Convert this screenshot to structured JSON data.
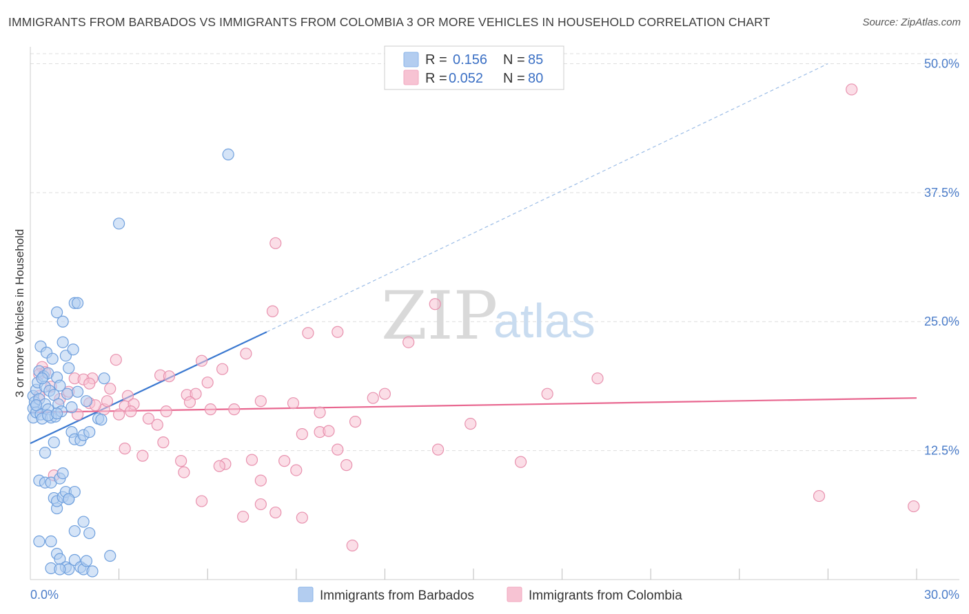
{
  "title": "IMMIGRANTS FROM BARBADOS VS IMMIGRANTS FROM COLOMBIA 3 OR MORE VEHICLES IN HOUSEHOLD CORRELATION CHART",
  "source": "Source: ZipAtlas.com",
  "watermark": {
    "zip": "ZIP",
    "atlas": "atlas"
  },
  "legend": {
    "r_label": "R = ",
    "n_label": "N = ",
    "entries": [
      {
        "series": "Immigrants from Barbados",
        "r": "0.156",
        "n": "85",
        "color": "#8ab4e8"
      },
      {
        "series": "Immigrants from Colombia",
        "r": "0.052",
        "n": "80",
        "color": "#f2a7bf"
      }
    ]
  },
  "colors": {
    "barbados_fill": "#b3cdf0",
    "barbados_stroke": "#6e9fdd",
    "barbados_line": "#3a78d0",
    "colombia_fill": "#f7c3d3",
    "colombia_stroke": "#e891ae",
    "colombia_line": "#e8668f",
    "grid": "#dddddd",
    "tick_text": "#4a7cc9"
  },
  "chart_data": {
    "type": "scatter",
    "title": "IMMIGRANTS FROM BARBADOS VS IMMIGRANTS FROM COLOMBIA 3 OR MORE VEHICLES IN HOUSEHOLD CORRELATION CHART",
    "xlabel": "",
    "ylabel": "3 or more Vehicles in Household",
    "xlim": [
      0,
      30
    ],
    "ylim": [
      0,
      51.5
    ],
    "x_tick_labels": [
      {
        "value": 0,
        "label": "0.0%"
      },
      {
        "value": 30,
        "label": "30.0%"
      }
    ],
    "x_minor_ticks": [
      3,
      6,
      9,
      12,
      15,
      18,
      21,
      24,
      27
    ],
    "y_ticks": [
      {
        "value": 12.5,
        "label": "12.5%"
      },
      {
        "value": 25,
        "label": "25.0%"
      },
      {
        "value": 37.5,
        "label": "37.5%"
      },
      {
        "value": 50,
        "label": "50.0%"
      }
    ],
    "grid": true,
    "legend_position": "top-center",
    "series": [
      {
        "name": "Immigrants from Barbados",
        "r": 0.156,
        "n": 85,
        "trend": {
          "x0": 0,
          "y0": 13.2,
          "x1": 8,
          "y1": 24.0,
          "dashed_to_x": 27,
          "dashed_to_y": 50.0
        },
        "points": [
          [
            0.1,
            17.8
          ],
          [
            0.1,
            16.6
          ],
          [
            0.1,
            15.7
          ],
          [
            0.15,
            17.2
          ],
          [
            0.2,
            18.4
          ],
          [
            0.2,
            16.2
          ],
          [
            0.25,
            19.1
          ],
          [
            0.3,
            20.2
          ],
          [
            0.3,
            17.5
          ],
          [
            0.35,
            22.6
          ],
          [
            0.35,
            16.0
          ],
          [
            0.4,
            15.6
          ],
          [
            0.45,
            19.7
          ],
          [
            0.5,
            18.7
          ],
          [
            0.5,
            17.0
          ],
          [
            0.55,
            22.0
          ],
          [
            0.6,
            16.5
          ],
          [
            0.6,
            20.0
          ],
          [
            0.65,
            18.3
          ],
          [
            0.7,
            15.7
          ],
          [
            0.75,
            21.4
          ],
          [
            0.8,
            17.9
          ],
          [
            0.85,
            15.8
          ],
          [
            0.9,
            19.6
          ],
          [
            0.95,
            17.0
          ],
          [
            1.0,
            18.8
          ],
          [
            1.05,
            16.3
          ],
          [
            0.9,
            25.9
          ],
          [
            1.1,
            23.0
          ],
          [
            1.2,
            21.7
          ],
          [
            1.25,
            18.0
          ],
          [
            1.3,
            20.5
          ],
          [
            1.4,
            16.7
          ],
          [
            1.45,
            22.3
          ],
          [
            1.5,
            26.8
          ],
          [
            1.4,
            14.3
          ],
          [
            1.6,
            18.2
          ],
          [
            1.5,
            13.6
          ],
          [
            1.7,
            13.5
          ],
          [
            1.8,
            14.0
          ],
          [
            1.9,
            17.3
          ],
          [
            2.0,
            14.3
          ],
          [
            1.6,
            26.8
          ],
          [
            1.1,
            25.0
          ],
          [
            2.3,
            15.6
          ],
          [
            2.5,
            19.5
          ],
          [
            2.4,
            15.5
          ],
          [
            0.8,
            13.3
          ],
          [
            0.5,
            12.3
          ],
          [
            0.3,
            9.6
          ],
          [
            0.5,
            9.4
          ],
          [
            0.7,
            9.4
          ],
          [
            0.8,
            7.9
          ],
          [
            0.9,
            6.9
          ],
          [
            0.9,
            7.6
          ],
          [
            1.0,
            9.8
          ],
          [
            1.1,
            8.0
          ],
          [
            1.2,
            8.5
          ],
          [
            1.1,
            10.3
          ],
          [
            1.3,
            7.8
          ],
          [
            1.5,
            8.5
          ],
          [
            1.8,
            5.6
          ],
          [
            1.5,
            4.7
          ],
          [
            2.0,
            4.5
          ],
          [
            0.3,
            3.7
          ],
          [
            0.7,
            3.7
          ],
          [
            0.9,
            2.5
          ],
          [
            1.0,
            2.0
          ],
          [
            1.2,
            1.2
          ],
          [
            1.3,
            1.0
          ],
          [
            1.5,
            1.9
          ],
          [
            1.7,
            1.2
          ],
          [
            1.8,
            1.0
          ],
          [
            1.9,
            1.8
          ],
          [
            2.1,
            0.8
          ],
          [
            0.7,
            1.1
          ],
          [
            1.0,
            1.0
          ],
          [
            2.7,
            2.3
          ],
          [
            3.0,
            34.5
          ],
          [
            6.7,
            41.2
          ],
          [
            0.2,
            16.9
          ],
          [
            0.6,
            15.9
          ],
          [
            1.3,
            7.8
          ],
          [
            0.4,
            19.5
          ],
          [
            0.9,
            16.1
          ]
        ]
      },
      {
        "name": "Immigrants from Colombia",
        "r": 0.052,
        "n": 80,
        "trend": {
          "x0": 0,
          "y0": 16.2,
          "x1": 30,
          "y1": 17.6
        },
        "points": [
          [
            27.8,
            47.5
          ],
          [
            8.3,
            32.6
          ],
          [
            13.7,
            26.7
          ],
          [
            8.2,
            26.0
          ],
          [
            10.4,
            24.0
          ],
          [
            9.4,
            23.9
          ],
          [
            12.8,
            23.0
          ],
          [
            7.3,
            21.9
          ],
          [
            2.9,
            21.3
          ],
          [
            5.8,
            21.2
          ],
          [
            6.5,
            20.4
          ],
          [
            0.4,
            20.6
          ],
          [
            0.5,
            20.1
          ],
          [
            1.5,
            19.5
          ],
          [
            2.1,
            19.5
          ],
          [
            2.7,
            18.5
          ],
          [
            4.4,
            19.8
          ],
          [
            4.7,
            19.7
          ],
          [
            3.3,
            17.8
          ],
          [
            3.2,
            16.8
          ],
          [
            3.5,
            17.0
          ],
          [
            4.0,
            15.6
          ],
          [
            4.3,
            15.0
          ],
          [
            5.3,
            17.9
          ],
          [
            5.6,
            18.0
          ],
          [
            6.9,
            16.5
          ],
          [
            6.1,
            16.5
          ],
          [
            7.8,
            17.3
          ],
          [
            4.5,
            13.3
          ],
          [
            3.2,
            12.7
          ],
          [
            3.8,
            12.0
          ],
          [
            5.1,
            11.5
          ],
          [
            5.2,
            10.4
          ],
          [
            6.6,
            11.2
          ],
          [
            6.4,
            11.0
          ],
          [
            7.5,
            11.6
          ],
          [
            8.6,
            11.5
          ],
          [
            9.0,
            10.6
          ],
          [
            7.8,
            9.6
          ],
          [
            9.2,
            14.1
          ],
          [
            9.8,
            14.3
          ],
          [
            10.1,
            14.4
          ],
          [
            10.4,
            12.6
          ],
          [
            10.7,
            11.1
          ],
          [
            11.0,
            15.3
          ],
          [
            8.9,
            17.1
          ],
          [
            11.6,
            17.6
          ],
          [
            12.0,
            18.0
          ],
          [
            13.8,
            12.6
          ],
          [
            14.9,
            15.1
          ],
          [
            16.6,
            11.4
          ],
          [
            17.5,
            18.0
          ],
          [
            19.2,
            19.5
          ],
          [
            26.7,
            8.1
          ],
          [
            29.9,
            7.1
          ],
          [
            1.6,
            16.0
          ],
          [
            2.5,
            16.5
          ],
          [
            3.0,
            16.0
          ],
          [
            3.4,
            16.3
          ],
          [
            2.0,
            17.1
          ],
          [
            1.3,
            18.2
          ],
          [
            1.0,
            17.5
          ],
          [
            0.7,
            18.7
          ],
          [
            1.8,
            19.4
          ],
          [
            0.3,
            17.8
          ],
          [
            0.8,
            10.1
          ],
          [
            5.8,
            7.6
          ],
          [
            7.8,
            7.3
          ],
          [
            7.2,
            6.1
          ],
          [
            8.3,
            6.5
          ],
          [
            9.2,
            6.0
          ],
          [
            10.9,
            3.3
          ],
          [
            2.2,
            16.9
          ],
          [
            4.6,
            16.3
          ],
          [
            2.6,
            17.3
          ],
          [
            2.0,
            19.0
          ],
          [
            5.4,
            17.2
          ],
          [
            6.0,
            19.1
          ],
          [
            9.8,
            16.2
          ],
          [
            0.3,
            19.9
          ]
        ]
      }
    ]
  },
  "bottom_legend": [
    {
      "label": "Immigrants from Barbados"
    },
    {
      "label": "Immigrants from Colombia"
    }
  ]
}
